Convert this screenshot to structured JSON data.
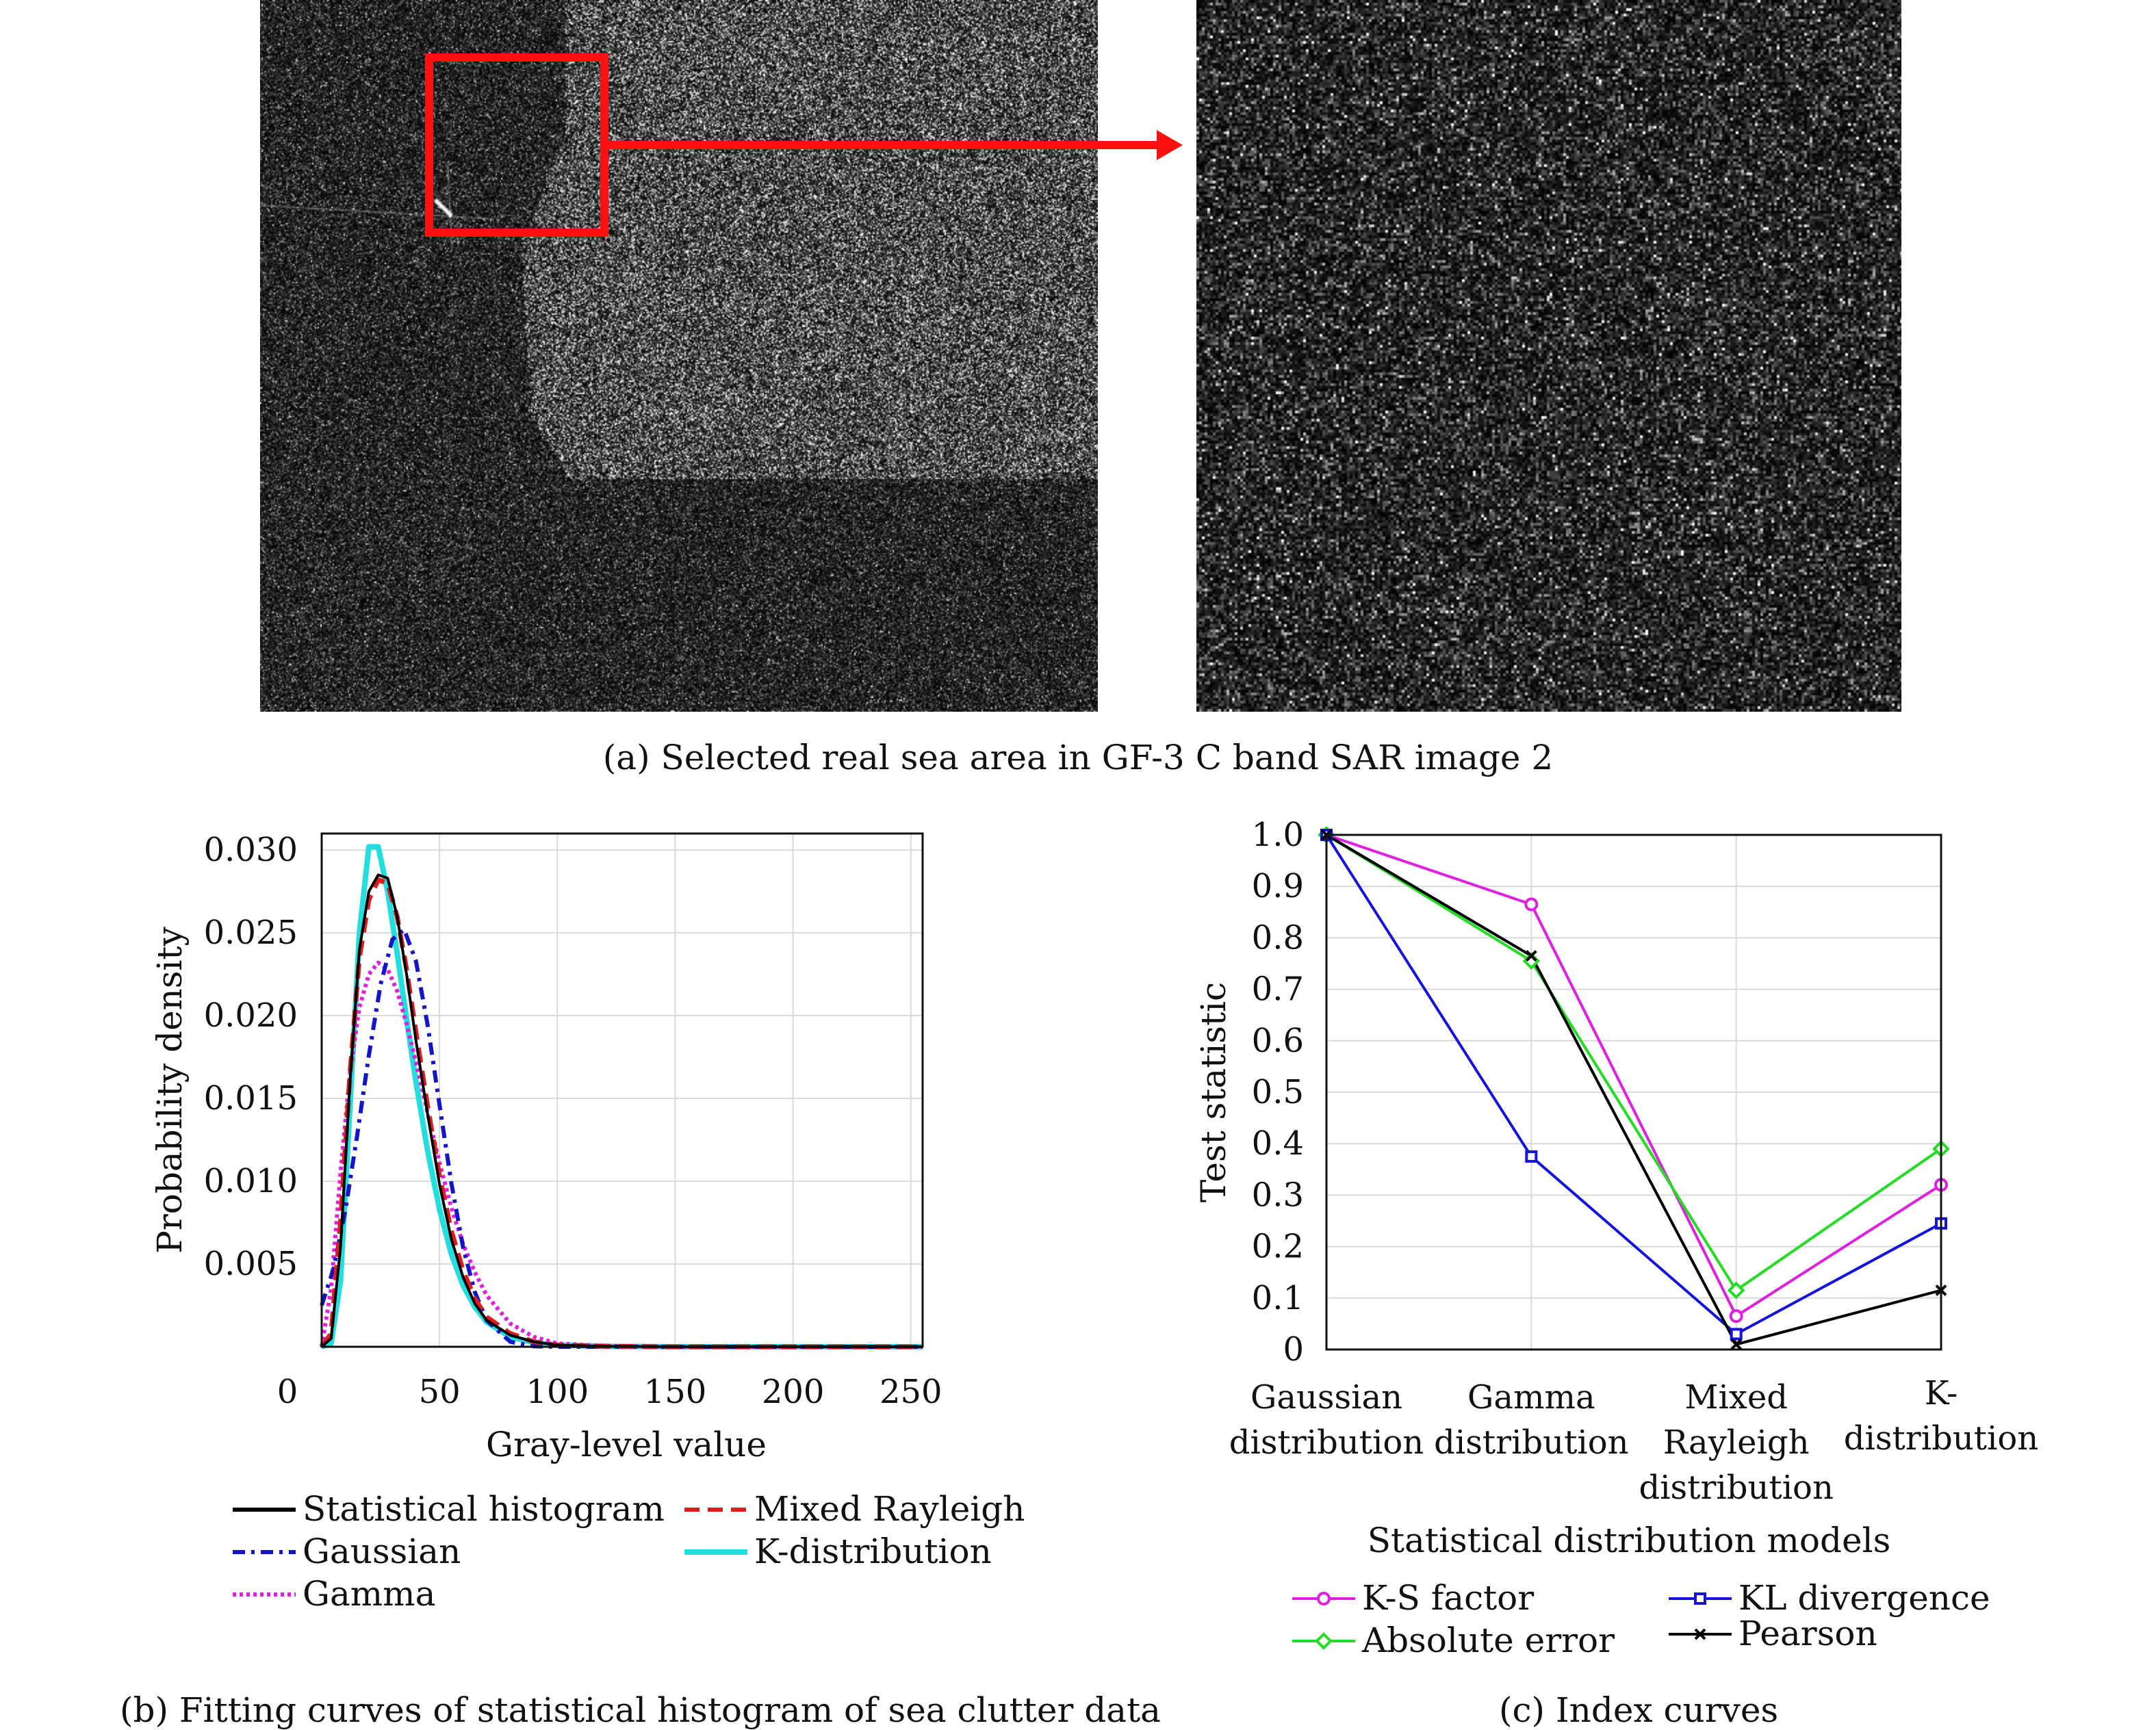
{
  "panel_a": {
    "caption": "(a) Selected real sea area in GF-3 C band SAR image 2"
  },
  "chart_data": [
    {
      "type": "line",
      "caption": "(b) Fitting curves of statistical histogram of sea clutter data",
      "xlabel": "Gray-level value",
      "ylabel": "Probability density",
      "xlim": [
        0,
        255
      ],
      "ylim": [
        0,
        0.031
      ],
      "x_ticks": [
        "0",
        "50",
        "100",
        "150",
        "200",
        "250"
      ],
      "x_tick_values": [
        0,
        50,
        100,
        150,
        200,
        250
      ],
      "y_ticks": [
        "0.005",
        "0.010",
        "0.015",
        "0.020",
        "0.025",
        "0.030"
      ],
      "y_tick_values": [
        0.005,
        0.01,
        0.015,
        0.02,
        0.025,
        0.03
      ],
      "grid": true,
      "legend_placement": "bottom",
      "series": [
        {
          "name": "Statistical histogram",
          "color": "#000000",
          "style": "solid",
          "x": [
            0,
            4,
            8,
            12,
            16,
            20,
            24,
            28,
            32,
            36,
            40,
            45,
            50,
            55,
            60,
            65,
            70,
            80,
            90,
            100,
            120,
            150,
            200,
            255
          ],
          "y": [
            0,
            0.0005,
            0.006,
            0.016,
            0.024,
            0.0275,
            0.0285,
            0.0283,
            0.026,
            0.0225,
            0.0185,
            0.014,
            0.0098,
            0.0065,
            0.0042,
            0.0026,
            0.0016,
            0.0007,
            0.0003,
            0.0001,
            3e-05,
            0,
            0,
            0
          ]
        },
        {
          "name": "Mixed Rayleigh",
          "color": "#e01b1b",
          "style": "dashed",
          "x": [
            0,
            4,
            8,
            12,
            16,
            20,
            24,
            28,
            32,
            36,
            40,
            45,
            50,
            55,
            60,
            65,
            70,
            80,
            90,
            100,
            120,
            150,
            200,
            255
          ],
          "y": [
            0,
            0.0008,
            0.0075,
            0.0165,
            0.0235,
            0.027,
            0.0282,
            0.028,
            0.026,
            0.0228,
            0.019,
            0.0145,
            0.0103,
            0.007,
            0.0046,
            0.0029,
            0.0018,
            0.0008,
            0.0003,
            0.0001,
            3e-05,
            0,
            0,
            0
          ]
        },
        {
          "name": "Gaussian",
          "color": "#1414c8",
          "style": "dashdot",
          "x": [
            0,
            5,
            10,
            15,
            20,
            25,
            30,
            35,
            40,
            45,
            50,
            55,
            60,
            65,
            70,
            80,
            90,
            100,
            150,
            255
          ],
          "y": [
            0.0025,
            0.0047,
            0.0082,
            0.0127,
            0.0176,
            0.0219,
            0.0246,
            0.0252,
            0.0233,
            0.0194,
            0.0146,
            0.0099,
            0.006,
            0.0033,
            0.0016,
            0.0003,
            3e-05,
            0,
            0,
            0
          ]
        },
        {
          "name": "K-distribution",
          "color": "#22dede",
          "style": "solid",
          "x": [
            0,
            4,
            8,
            12,
            16,
            20,
            24,
            28,
            32,
            36,
            40,
            45,
            50,
            55,
            60,
            65,
            70,
            80,
            90,
            100,
            120,
            150,
            200,
            255
          ],
          "y": [
            0,
            0.0002,
            0.004,
            0.0145,
            0.025,
            0.0302,
            0.0302,
            0.0275,
            0.0238,
            0.0198,
            0.016,
            0.0118,
            0.0083,
            0.0056,
            0.0037,
            0.0024,
            0.0015,
            0.0006,
            0.00025,
            0.0001,
            3e-05,
            0,
            0,
            0
          ]
        },
        {
          "name": "Gamma",
          "color": "#e020e0",
          "style": "dotted",
          "x": [
            0,
            4,
            8,
            12,
            16,
            20,
            24,
            28,
            32,
            36,
            40,
            45,
            50,
            55,
            60,
            65,
            70,
            80,
            90,
            100,
            120,
            150,
            200,
            255
          ],
          "y": [
            0,
            0.0035,
            0.0105,
            0.0165,
            0.0205,
            0.0225,
            0.0232,
            0.0228,
            0.0215,
            0.0195,
            0.0172,
            0.0141,
            0.0111,
            0.0084,
            0.0062,
            0.0045,
            0.0031,
            0.0014,
            0.0006,
            0.0002,
            5e-05,
            0,
            0,
            0
          ]
        }
      ]
    },
    {
      "type": "line",
      "caption": "(c) Index curves",
      "xlabel": "Statistical distribution models",
      "ylabel": "Test statistic",
      "ylim": [
        0,
        1.0
      ],
      "categories": [
        [
          "Gaussian",
          "distribution"
        ],
        [
          "Gamma",
          "distribution"
        ],
        [
          "Mixed",
          "Rayleigh",
          "distribution"
        ],
        [
          "K-",
          "distribution"
        ]
      ],
      "y_ticks": [
        "0",
        "0.1",
        "0.2",
        "0.3",
        "0.4",
        "0.5",
        "0.6",
        "0.7",
        "0.8",
        "0.9",
        "1.0"
      ],
      "y_tick_values": [
        0,
        0.1,
        0.2,
        0.3,
        0.4,
        0.5,
        0.6,
        0.7,
        0.8,
        0.9,
        1.0
      ],
      "grid": true,
      "legend_placement": "bottom",
      "series": [
        {
          "name": "K-S factor",
          "color": "#e020e0",
          "marker": "circle",
          "values": [
            1.0,
            0.865,
            0.065,
            0.32
          ]
        },
        {
          "name": "Absolute error",
          "color": "#22dd22",
          "marker": "diamond",
          "values": [
            1.0,
            0.755,
            0.115,
            0.39
          ]
        },
        {
          "name": "KL divergence",
          "color": "#1414dd",
          "marker": "square",
          "values": [
            1.0,
            0.375,
            0.03,
            0.245
          ]
        },
        {
          "name": "Pearson",
          "color": "#000000",
          "marker": "cross",
          "values": [
            1.0,
            0.765,
            0.01,
            0.115
          ]
        }
      ]
    }
  ]
}
